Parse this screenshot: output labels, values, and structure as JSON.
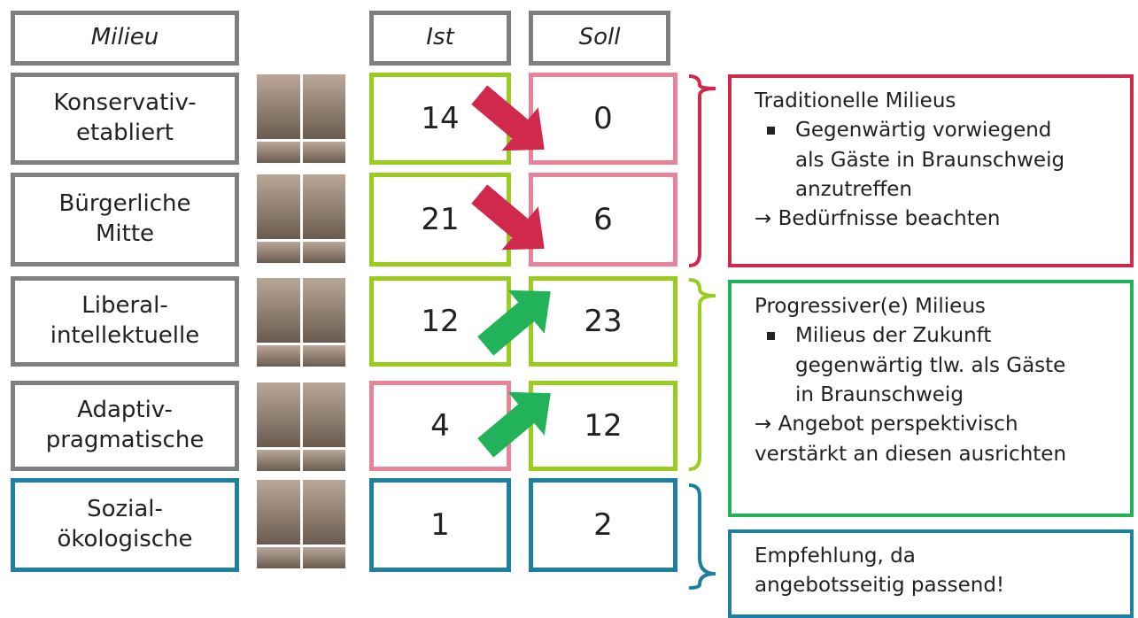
{
  "header": {
    "milieu": "Milieu",
    "ist": "Ist",
    "soll": "Soll"
  },
  "rows": [
    {
      "label": [
        "Konservativ-",
        "etabliert"
      ],
      "ist": "14",
      "soll": "0"
    },
    {
      "label": [
        "Bürgerliche",
        "Mitte"
      ],
      "ist": "21",
      "soll": "6"
    },
    {
      "label": [
        "Liberal-",
        "intellektuelle"
      ],
      "ist": "12",
      "soll": "23"
    },
    {
      "label": [
        "Adaptiv-",
        "pragmatische"
      ],
      "ist": "4",
      "soll": "12"
    },
    {
      "label": [
        "Sozial-",
        "ökologische"
      ],
      "ist": "1",
      "soll": "2"
    }
  ],
  "groups": [
    {
      "title": "Traditionelle Milieus",
      "bullet": [
        "Gegenwärtig vorwiegend",
        "als Gäste in Braunschweig",
        "anzutreffen"
      ],
      "conclusion": [
        "→ Bedürfnisse beachten"
      ]
    },
    {
      "title": "Progressiver(e) Milieus",
      "bullet": [
        "Milieus der Zukunft",
        "gegenwärtig tlw. als Gäste",
        "in Braunschweig"
      ],
      "conclusion": [
        "→ Angebot perspektivisch",
        "verstärkt an diesen ausrichten"
      ]
    },
    {
      "title": "Empfehlung, da",
      "bullet": [],
      "conclusion": [
        "angebotsseitig passend!"
      ]
    }
  ]
}
